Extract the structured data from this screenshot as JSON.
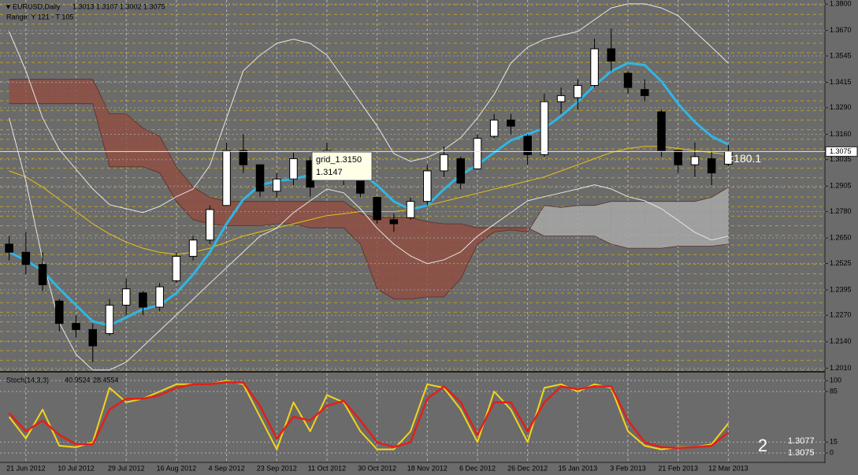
{
  "chart_data": [
    {
      "type": "candlestick",
      "title": "EURUSD,Daily",
      "subtitle": "Range: Y 121 - T 105",
      "categories": [
        null,
        "21 Jun 2012",
        null,
        null,
        "10 Jul 2012",
        null,
        null,
        "29 Jul 2012",
        null,
        null,
        "16 Aug 2012",
        null,
        null,
        "4 Sep 2012",
        null,
        null,
        "23 Sep 2012",
        null,
        null,
        "11 Oct 2012",
        null,
        null,
        "30 Oct 2012",
        null,
        null,
        "18 Nov 2012",
        null,
        null,
        "6 Dec 2012",
        null,
        null,
        "26 Dec 2012",
        null,
        null,
        "15 Jan 2013",
        null,
        null,
        "3 Feb 2013",
        null,
        null,
        "21 Feb 2013",
        null,
        null,
        "12 Mar 2013"
      ],
      "open": [
        1.262,
        1.258,
        1.252,
        1.234,
        1.223,
        1.22,
        1.218,
        1.232,
        1.238,
        1.231,
        1.244,
        1.256,
        1.264,
        1.281,
        1.308,
        1.301,
        1.288,
        1.294,
        1.303,
        1.296,
        1.305,
        1.298,
        1.285,
        1.274,
        1.275,
        1.283,
        1.298,
        1.304,
        1.299,
        1.315,
        1.323,
        1.315,
        1.306,
        1.332,
        1.334,
        1.34,
        1.358,
        1.346,
        1.338,
        1.327,
        1.308,
        1.301,
        1.304,
        1.3013
      ],
      "high": [
        1.266,
        1.268,
        1.258,
        1.235,
        1.227,
        1.223,
        1.235,
        1.245,
        1.239,
        1.243,
        1.258,
        1.266,
        1.281,
        1.312,
        1.316,
        1.301,
        1.297,
        1.307,
        1.305,
        1.312,
        1.305,
        1.301,
        1.285,
        1.277,
        1.285,
        1.301,
        1.31,
        1.305,
        1.316,
        1.326,
        1.326,
        1.316,
        1.336,
        1.339,
        1.343,
        1.363,
        1.368,
        1.347,
        1.343,
        1.328,
        1.308,
        1.312,
        1.308,
        1.3107
      ],
      "low": [
        1.254,
        1.247,
        1.239,
        1.219,
        1.216,
        1.204,
        1.217,
        1.227,
        1.227,
        1.229,
        1.243,
        1.254,
        1.262,
        1.281,
        1.297,
        1.285,
        1.285,
        1.291,
        1.285,
        1.295,
        1.291,
        1.285,
        1.272,
        1.268,
        1.274,
        1.281,
        1.295,
        1.289,
        1.299,
        1.314,
        1.316,
        1.301,
        1.305,
        1.326,
        1.328,
        1.339,
        1.347,
        1.336,
        1.332,
        1.305,
        1.297,
        1.295,
        1.291,
        1.3002
      ],
      "close": [
        1.258,
        1.252,
        1.242,
        1.223,
        1.22,
        1.212,
        1.232,
        1.24,
        1.231,
        1.241,
        1.256,
        1.264,
        1.279,
        1.308,
        1.301,
        1.288,
        1.294,
        1.304,
        1.29,
        1.308,
        1.296,
        1.287,
        1.274,
        1.272,
        1.283,
        1.298,
        1.306,
        1.292,
        1.314,
        1.323,
        1.32,
        1.306,
        1.332,
        1.335,
        1.34,
        1.358,
        1.352,
        1.339,
        1.335,
        1.308,
        1.301,
        1.305,
        1.297,
        1.3075
      ],
      "up_color": "#ffffff",
      "down_color": "#000000",
      "cloud": {
        "bull_color": "#a8a8a8",
        "bear_color": "#8e4f43",
        "span_a": [
          1.331,
          1.331,
          1.331,
          1.331,
          1.331,
          1.331,
          1.3,
          1.3,
          1.3,
          1.297,
          1.283,
          1.274,
          1.272,
          1.271,
          1.271,
          1.271,
          1.272,
          1.272,
          1.27,
          1.27,
          1.27,
          1.262,
          1.24,
          1.235,
          1.235,
          1.236,
          1.236,
          1.245,
          1.262,
          1.268,
          1.269,
          1.268,
          1.281,
          1.28,
          1.281,
          1.281,
          1.283,
          1.283,
          1.283,
          1.283,
          1.283,
          1.283,
          1.285,
          1.29
        ],
        "span_b": [
          1.343,
          1.343,
          1.343,
          1.343,
          1.343,
          1.343,
          1.326,
          1.326,
          1.319,
          1.315,
          1.3,
          1.29,
          1.285,
          1.283,
          1.283,
          1.283,
          1.283,
          1.283,
          1.283,
          1.283,
          1.283,
          1.277,
          1.275,
          1.275,
          1.275,
          1.273,
          1.272,
          1.272,
          1.27,
          1.27,
          1.27,
          1.27,
          1.266,
          1.266,
          1.266,
          1.266,
          1.262,
          1.26,
          1.26,
          1.26,
          1.261,
          1.261,
          1.261,
          1.262
        ]
      },
      "overlays": [
        {
          "color": "#e8c21a",
          "values": [
            1.298,
            1.295,
            1.29,
            1.284,
            1.278,
            1.272,
            1.267,
            1.263,
            1.26,
            1.258,
            1.257,
            1.258,
            1.26,
            1.263,
            1.266,
            1.268,
            1.27,
            1.272,
            1.274,
            1.276,
            1.277,
            1.278,
            1.278,
            1.278,
            1.279,
            1.281,
            1.283,
            1.285,
            1.287,
            1.289,
            1.291,
            1.293,
            1.295,
            1.298,
            1.301,
            1.304,
            1.307,
            1.309,
            1.31,
            1.31,
            1.309,
            1.308,
            1.307,
            1.306
          ]
        },
        {
          "color": "#e6e6e6",
          "values": [
            1.3665,
            1.3472,
            1.324,
            1.3085,
            1.2988,
            1.2891,
            1.2814,
            1.2794,
            1.2775,
            1.2806,
            1.2853,
            1.2891,
            1.3007,
            1.324,
            1.3472,
            1.3549,
            1.3607,
            1.3627,
            1.3607,
            1.3549,
            1.3433,
            1.3317,
            1.3201,
            1.3065,
            1.3027,
            1.3046,
            1.3085,
            1.3143,
            1.324,
            1.3356,
            1.351,
            1.3588,
            1.3627,
            1.3646,
            1.3665,
            1.3723,
            1.3781,
            1.3801,
            1.3801,
            1.3781,
            1.3743,
            1.3665,
            1.3588,
            1.351
          ]
        },
        {
          "color": "#e6e6e6",
          "values": [
            1.324,
            1.293,
            1.2543,
            1.2233,
            1.2078,
            1.2001,
            1.2001,
            1.204,
            1.2117,
            1.2195,
            1.2272,
            1.2349,
            1.2427,
            1.2504,
            1.2582,
            1.2659,
            1.2698,
            1.2775,
            1.2833,
            1.2891,
            1.2872,
            1.2794,
            1.2698,
            1.262,
            1.2562,
            1.2524,
            1.2543,
            1.2582,
            1.2659,
            1.2717,
            1.2775,
            1.2833,
            1.2853,
            1.2872,
            1.2891,
            1.2911,
            1.2891,
            1.2853,
            1.2833,
            1.2794,
            1.2736,
            1.2678,
            1.264,
            1.2659
          ]
        },
        {
          "color": "#2fb6e6",
          "values": [
            1.258,
            1.254,
            1.249,
            1.24,
            1.232,
            1.224,
            1.222,
            1.226,
            1.23,
            1.232,
            1.238,
            1.247,
            1.258,
            1.272,
            1.284,
            1.291,
            1.293,
            1.294,
            1.296,
            1.298,
            1.299,
            1.297,
            1.291,
            1.283,
            1.279,
            1.281,
            1.289,
            1.296,
            1.301,
            1.307,
            1.313,
            1.316,
            1.319,
            1.325,
            1.332,
            1.34,
            1.347,
            1.351,
            1.35,
            1.342,
            1.331,
            1.322,
            1.315,
            1.311
          ]
        }
      ],
      "ylim": [
        1.2,
        1.382
      ],
      "yticks": [
        {
          "value": 1.38,
          "label": "1.3800"
        },
        {
          "value": 1.367,
          "label": "1.3670"
        },
        1.3545,
        1.3415,
        {
          "value": 1.329,
          "label": "1.3290"
        },
        {
          "value": 1.316,
          "label": "1.3160"
        },
        1.3035,
        1.2905,
        {
          "value": 1.278,
          "label": "1.2780"
        },
        {
          "value": 1.265,
          "label": "1.2650"
        },
        1.2525,
        1.2395,
        {
          "value": 1.227,
          "label": "1.2270"
        },
        {
          "value": 1.214,
          "label": "1.2140"
        },
        {
          "value": 1.201,
          "label": "1.2010"
        }
      ],
      "grid": true,
      "current_price": 1.3075,
      "annotation": "<180.1",
      "tooltip": [
        "grid_1.3150",
        "1.3147"
      ]
    },
    {
      "type": "line",
      "title": "Stoch(14,3,3)",
      "series": [
        {
          "color": "#f2d41c",
          "values": [
            50,
            20,
            60,
            10,
            8,
            15,
            90,
            70,
            75,
            85,
            95,
            95,
            95,
            100,
            95,
            50,
            5,
            70,
            30,
            80,
            70,
            30,
            5,
            5,
            30,
            95,
            90,
            60,
            15,
            85,
            60,
            15,
            90,
            95,
            85,
            95,
            90,
            30,
            10,
            5,
            8,
            8,
            12,
            40.9524
          ]
        },
        {
          "color": "#e0201b",
          "values": [
            55,
            30,
            45,
            25,
            12,
            12,
            60,
            75,
            75,
            80,
            90,
            95,
            95,
            98,
            97,
            65,
            20,
            50,
            45,
            65,
            72,
            45,
            15,
            8,
            15,
            75,
            92,
            70,
            25,
            70,
            70,
            30,
            70,
            92,
            88,
            92,
            92,
            45,
            15,
            8,
            7,
            8,
            10,
            28.4554
          ]
        }
      ],
      "ylim": [
        -13,
        110
      ],
      "yticks": [
        0,
        15,
        85,
        100
      ],
      "window_number": "2",
      "readout": "1.3077"
    }
  ]
}
